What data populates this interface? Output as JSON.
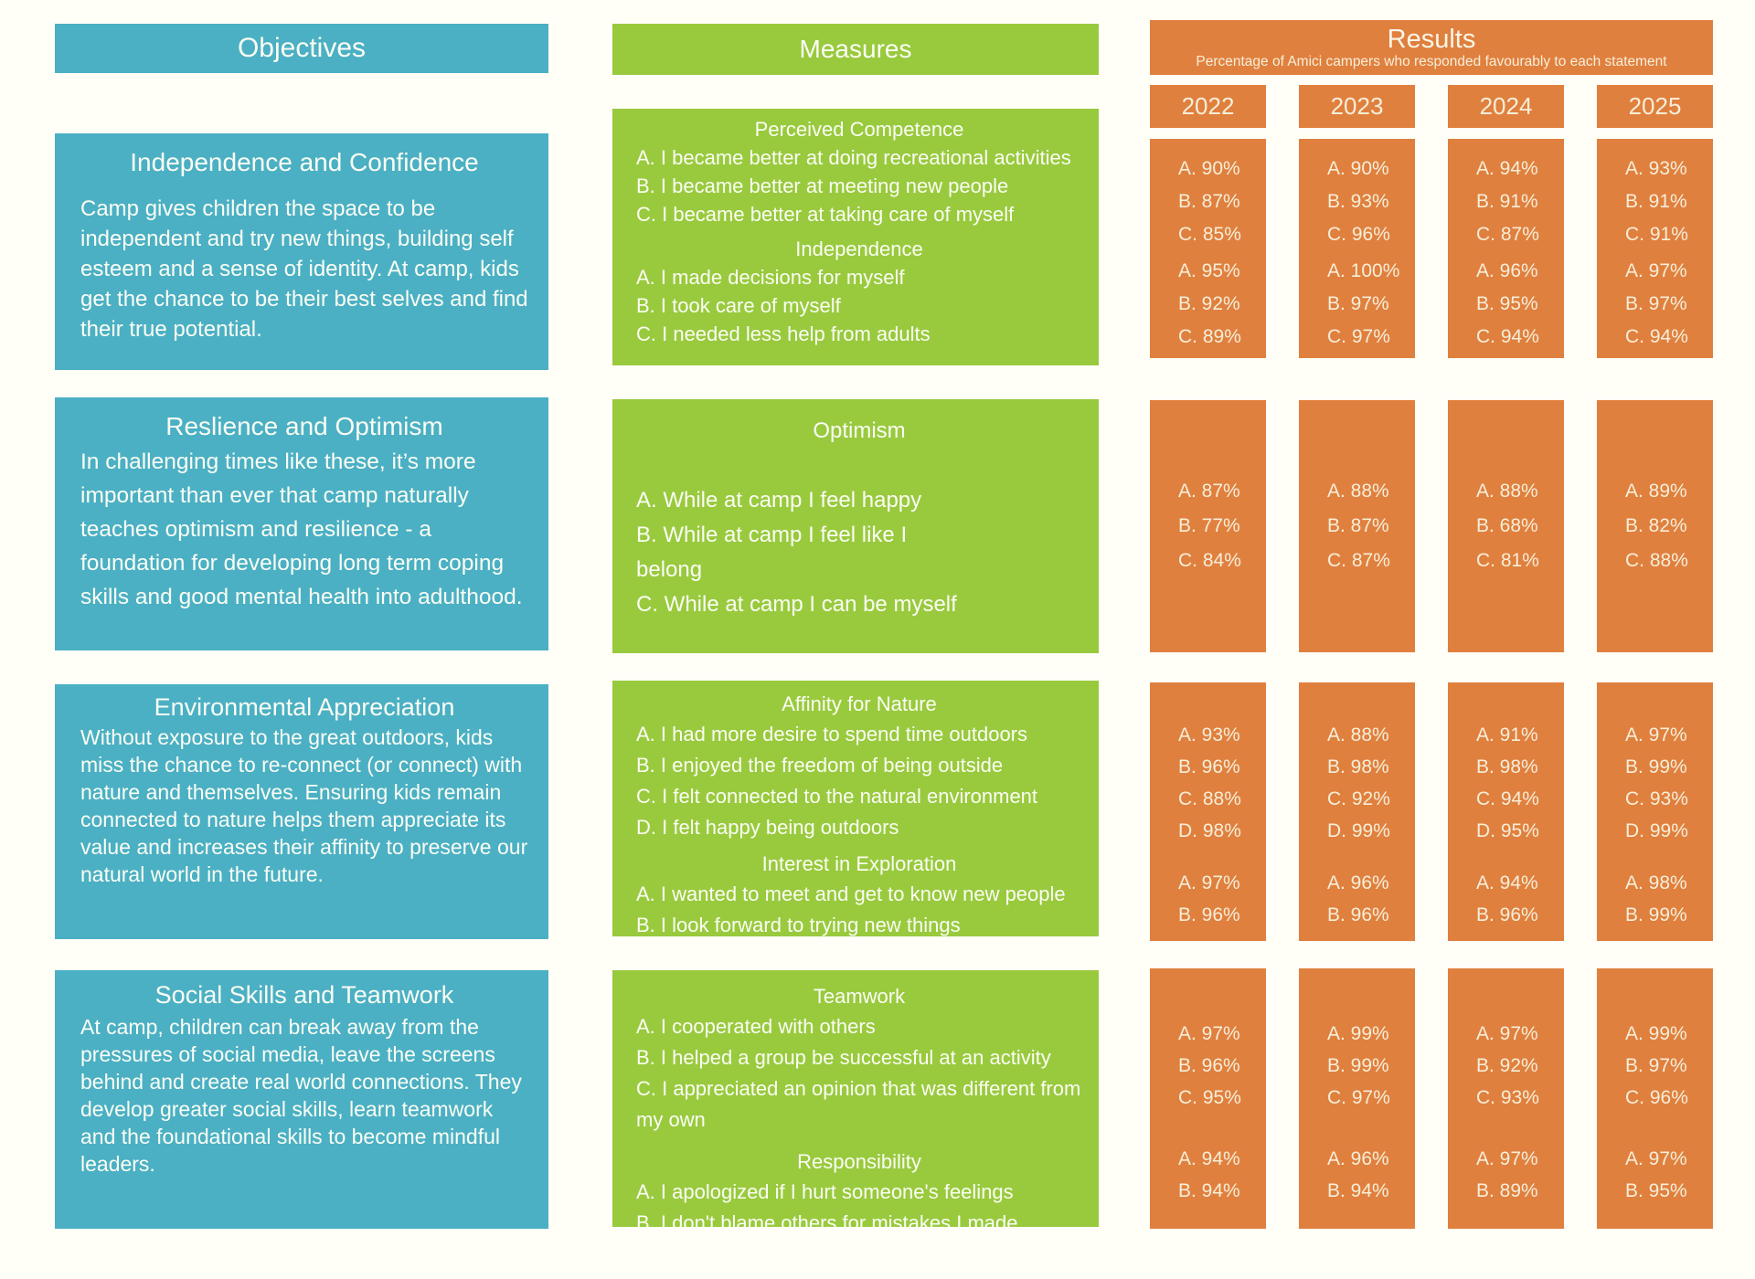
{
  "header": {
    "objectives_label": "Objectives",
    "measures_label": "Measures",
    "results_label": "Results",
    "results_subtitle": "Percentage of Amici campers who responded favourably to each statement",
    "years": [
      "2022",
      "2023",
      "2024",
      "2025"
    ]
  },
  "colors": {
    "teal": "#4BB0C4",
    "green": "#99CA3E",
    "orange": "#E0803E",
    "light_text": "#FBFDF4",
    "cream_text": "#F6EED9",
    "background": "#FFFEF7"
  },
  "rows": [
    {
      "objective": {
        "title": "Independence and Confidence",
        "body": "Camp gives children the space to be independent and try new things, building self esteem and a sense of identity. At camp, kids get the chance to be their best selves and find their true potential."
      },
      "measures": [
        {
          "heading": "Perceived Competence",
          "items": [
            "A. I became better at doing recreational activities",
            "B. I became better at meeting new people",
            "C. I became better at taking care of myself"
          ]
        },
        {
          "heading": "Independence",
          "items": [
            "A. I made decisions for myself",
            "B. I took care of myself",
            "C. I needed less help from adults"
          ]
        }
      ],
      "results": [
        {
          "year": "2022",
          "groups": [
            [
              "A. 90%",
              "B. 87%",
              "C. 85%"
            ],
            [
              "A. 95%",
              "B. 92%",
              "C. 89%"
            ]
          ]
        },
        {
          "year": "2023",
          "groups": [
            [
              "A. 90%",
              "B. 93%",
              "C. 96%"
            ],
            [
              "A. 100%",
              "B. 97%",
              "C. 97%"
            ]
          ]
        },
        {
          "year": "2024",
          "groups": [
            [
              "A. 94%",
              "B. 91%",
              "C. 87%"
            ],
            [
              "A. 96%",
              "B. 95%",
              "C. 94%"
            ]
          ]
        },
        {
          "year": "2025",
          "groups": [
            [
              "A. 93%",
              "B. 91%",
              "C. 91%"
            ],
            [
              "A. 97%",
              "B. 97%",
              "C. 94%"
            ]
          ]
        }
      ]
    },
    {
      "objective": {
        "title": "Reslience and Optimism",
        "body": "In challenging times like these, it’s more important than ever that camp naturally teaches optimism and resilience - a foundation for developing long term coping skills and good mental health into adulthood."
      },
      "measures": [
        {
          "heading": "Optimism",
          "items": [
            "A. While at camp I feel happy",
            "B. While at camp I feel like I\nbelong",
            "C. While at camp I can be myself"
          ]
        }
      ],
      "results": [
        {
          "year": "2022",
          "groups": [
            [
              "A. 87%",
              "B. 77%",
              "C. 84%"
            ]
          ]
        },
        {
          "year": "2023",
          "groups": [
            [
              "A. 88%",
              "B. 87%",
              "C. 87%"
            ]
          ]
        },
        {
          "year": "2024",
          "groups": [
            [
              "A. 88%",
              "B. 68%",
              "C. 81%"
            ]
          ]
        },
        {
          "year": "2025",
          "groups": [
            [
              "A. 89%",
              "B. 82%",
              "C. 88%"
            ]
          ]
        }
      ]
    },
    {
      "objective": {
        "title": "Environmental Appreciation",
        "body": "Without exposure to the great outdoors, kids miss the chance to re-connect (or connect) with nature and themselves. Ensuring kids remain connected to nature helps them appreciate its value and increases their affinity to preserve our natural world in the future."
      },
      "measures": [
        {
          "heading": "Affinity for Nature",
          "items": [
            "A. I had more desire to spend time outdoors",
            "B. I enjoyed the freedom of being outside",
            "C. I felt connected to the natural environment",
            "D. I felt happy being outdoors"
          ]
        },
        {
          "heading": "Interest in Exploration",
          "items": [
            "A. I wanted to meet and get to know new people",
            "B. I look forward to trying new things"
          ]
        }
      ],
      "results": [
        {
          "year": "2022",
          "groups": [
            [
              "A. 93%",
              "B. 96%",
              "C. 88%",
              "D. 98%"
            ],
            [
              "A. 97%",
              "B. 96%"
            ]
          ]
        },
        {
          "year": "2023",
          "groups": [
            [
              "A. 88%",
              "B. 98%",
              "C. 92%",
              "D. 99%"
            ],
            [
              "A. 96%",
              "B. 96%"
            ]
          ]
        },
        {
          "year": "2024",
          "groups": [
            [
              "A. 91%",
              "B. 98%",
              "C. 94%",
              "D. 95%"
            ],
            [
              "A. 94%",
              "B. 96%"
            ]
          ]
        },
        {
          "year": "2025",
          "groups": [
            [
              "A. 97%",
              "B. 99%",
              "C. 93%",
              "D. 99%"
            ],
            [
              "A. 98%",
              "B. 99%"
            ]
          ]
        }
      ]
    },
    {
      "objective": {
        "title": "Social Skills and Teamwork",
        "body": "At camp, children can break away from the pressures of social media, leave the screens behind and create real world connections. They develop greater social skills, learn teamwork and the foundational skills to become mindful leaders."
      },
      "measures": [
        {
          "heading": "Teamwork",
          "items": [
            "A.  I cooperated with others",
            "B. I helped a group be successful at an activity",
            "C. I appreciated an opinion that was different from my own"
          ]
        },
        {
          "heading": "Responsibility",
          "items": [
            "A. I apologized if I hurt someone's feelings",
            "B. I don't blame others for mistakes I made"
          ]
        }
      ],
      "results": [
        {
          "year": "2022",
          "groups": [
            [
              "A. 97%",
              "B. 96%",
              "C. 95%"
            ],
            [
              "A. 94%",
              "B. 94%"
            ]
          ]
        },
        {
          "year": "2023",
          "groups": [
            [
              "A. 99%",
              "B. 99%",
              "C. 97%"
            ],
            [
              "A. 96%",
              "B. 94%"
            ]
          ]
        },
        {
          "year": "2024",
          "groups": [
            [
              "A. 97%",
              "B. 92%",
              "C. 93%"
            ],
            [
              "A. 97%",
              "B. 89%"
            ]
          ]
        },
        {
          "year": "2025",
          "groups": [
            [
              "A. 99%",
              "B. 97%",
              "C. 96%"
            ],
            [
              "A. 97%",
              "B. 95%"
            ]
          ]
        }
      ]
    }
  ]
}
